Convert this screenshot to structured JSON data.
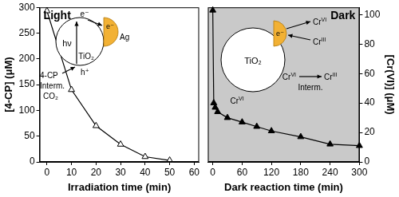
{
  "chart_data": [
    {
      "type": "line",
      "title": "Light",
      "x_label": "Irradiation time (min)",
      "y_label": "[4-CP] (μM)",
      "x": [
        0,
        10,
        20,
        30,
        40,
        50
      ],
      "series": [
        {
          "values": [
            293,
            140,
            70,
            34,
            10,
            3
          ],
          "color": "#000000",
          "marker": "open_triangle",
          "line_style": "solid"
        }
      ],
      "xlim": [
        -3,
        62
      ],
      "xticks": [
        0,
        10,
        20,
        30,
        40,
        50,
        60
      ],
      "ylim": [
        0,
        300
      ],
      "yticks": [
        0,
        50,
        100,
        150,
        200,
        250,
        300
      ],
      "grid": false,
      "annotations": [
        "hν",
        "e⁻",
        "h⁺",
        "4-CP",
        "Interm.",
        "CO₂",
        "TiO₂",
        "Ag",
        "e⁻"
      ]
    },
    {
      "type": "line",
      "title": "Dark",
      "x_label": "Dark reaction time (min)",
      "y2_label": "[Cr(VI)] (μM)",
      "x": [
        0,
        2,
        5,
        10,
        30,
        60,
        90,
        120,
        180,
        240,
        300
      ],
      "series": [
        {
          "values": [
            103,
            40,
            37,
            34,
            30,
            27,
            24,
            21,
            17,
            12,
            11
          ],
          "color": "#000000",
          "marker": "triangle",
          "line_style": "solid",
          "axis": "y2"
        }
      ],
      "xlim": [
        -10,
        300
      ],
      "xticks": [
        0,
        60,
        120,
        180,
        240,
        300
      ],
      "y2lim": [
        0,
        105
      ],
      "y2ticks": [
        0,
        20,
        40,
        60,
        80,
        100
      ],
      "grid": false,
      "annotations": [
        "TiO₂",
        "e⁻",
        "CrVI",
        "CrIII",
        "CrVI",
        "CrVI",
        "CrIII",
        "Interm."
      ]
    }
  ]
}
